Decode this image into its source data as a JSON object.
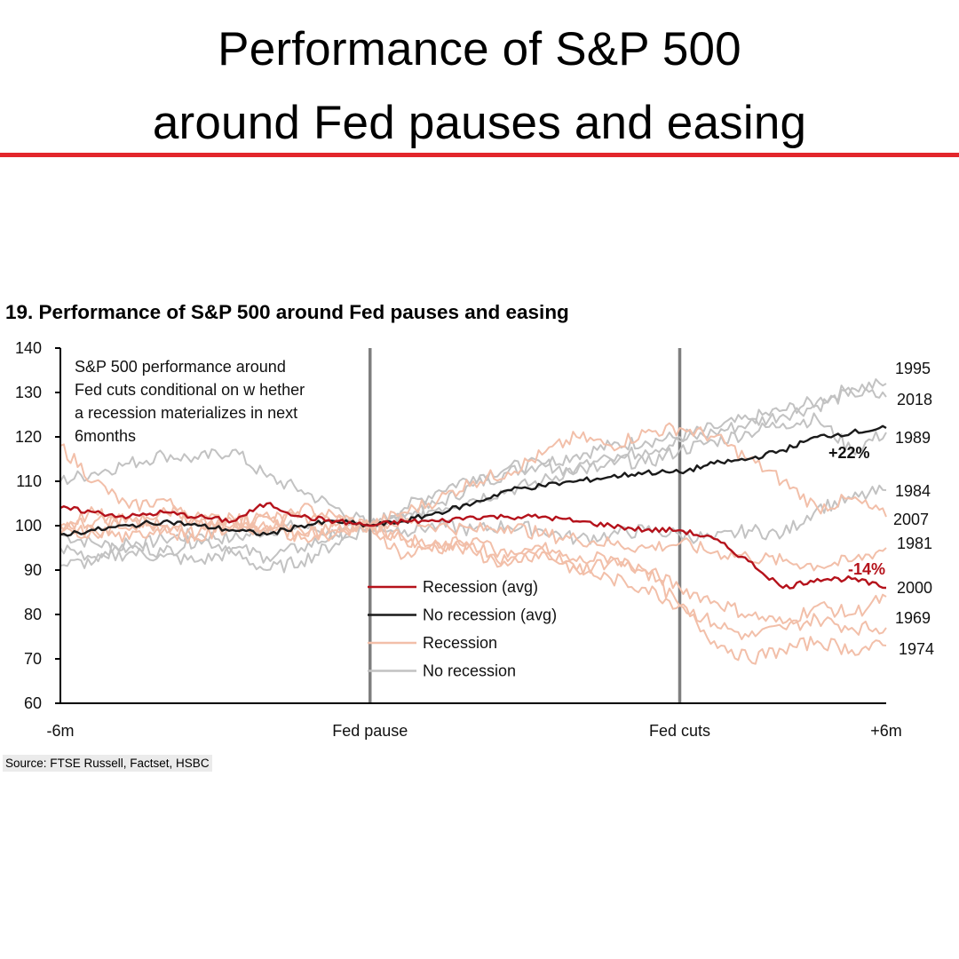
{
  "headline": {
    "line1": "Performance of S&P 500",
    "line2": "around Fed pauses and easing"
  },
  "source": "Source: FTSE Russell, Factset, HSBC",
  "colors": {
    "accent_rule": "#e3262b",
    "recession_avg": "#b5121b",
    "no_recession_avg": "#1a1a1a",
    "recession": "#f2bfa9",
    "no_recession": "#c2c2c2",
    "event_line": "#7f7f7f"
  },
  "chart_data": {
    "type": "line",
    "title": "19. Performance of S&P 500 around Fed pauses and easing",
    "annotation": "S&P 500 performance around Fed cuts conditional on w hether a recession materializes in next 6months",
    "annotation_lines": [
      "S&P 500 performance around",
      "Fed cuts conditional on w hether",
      "a recession materializes in next",
      "6months"
    ],
    "ylim": [
      60,
      140
    ],
    "yticks": [
      "140",
      "130",
      "120",
      "110",
      "100",
      "90",
      "80",
      "70",
      "60"
    ],
    "xlim": [
      0,
      12
    ],
    "xticks": [
      {
        "x": 0,
        "label": "-6m"
      },
      {
        "x": 4.5,
        "label": "Fed pause"
      },
      {
        "x": 9,
        "label": "Fed cuts"
      },
      {
        "x": 12,
        "label": "+6m"
      }
    ],
    "event_lines": [
      4.5,
      9
    ],
    "grid": false,
    "legend": {
      "placement": "bottom-center",
      "entries": [
        "Recession (avg)",
        "No recession (avg)",
        "Recession",
        "No recession"
      ]
    },
    "series": [
      {
        "name": "No recession",
        "group": "no_recession",
        "end_label": "1995",
        "points": [
          [
            0,
            98
          ],
          [
            0.5,
            96
          ],
          [
            1,
            95
          ],
          [
            1.5,
            97
          ],
          [
            2,
            98
          ],
          [
            2.5,
            97
          ],
          [
            3,
            99
          ],
          [
            3.5,
            100
          ],
          [
            4,
            98
          ],
          [
            4.5,
            100
          ],
          [
            5,
            102
          ],
          [
            5.5,
            105
          ],
          [
            6,
            109
          ],
          [
            6.5,
            112
          ],
          [
            7,
            114
          ],
          [
            7.5,
            116
          ],
          [
            8,
            118
          ],
          [
            8.5,
            119
          ],
          [
            9,
            120
          ],
          [
            9.5,
            122
          ],
          [
            10,
            124
          ],
          [
            10.5,
            126
          ],
          [
            11,
            128
          ],
          [
            11.5,
            131
          ],
          [
            12,
            132
          ]
        ]
      },
      {
        "name": "No recession",
        "group": "no_recession",
        "end_label": "2018",
        "points": [
          [
            0,
            110
          ],
          [
            0.5,
            112
          ],
          [
            1,
            114
          ],
          [
            1.5,
            116
          ],
          [
            2,
            115
          ],
          [
            2.5,
            117
          ],
          [
            3,
            111
          ],
          [
            3.5,
            108
          ],
          [
            4,
            104
          ],
          [
            4.5,
            100
          ],
          [
            5,
            104
          ],
          [
            5.5,
            108
          ],
          [
            6,
            111
          ],
          [
            6.5,
            113
          ],
          [
            7,
            114
          ],
          [
            7.5,
            112
          ],
          [
            8,
            115
          ],
          [
            8.5,
            117
          ],
          [
            9,
            119
          ],
          [
            9.5,
            121
          ],
          [
            10,
            123
          ],
          [
            10.5,
            125
          ],
          [
            11,
            127
          ],
          [
            11.5,
            130
          ],
          [
            12,
            129
          ]
        ]
      },
      {
        "name": "No recession",
        "group": "no_recession",
        "end_label": "1989",
        "points": [
          [
            0,
            95
          ],
          [
            0.5,
            93
          ],
          [
            1,
            96
          ],
          [
            1.5,
            94
          ],
          [
            2,
            97
          ],
          [
            2.5,
            95
          ],
          [
            3,
            93
          ],
          [
            3.5,
            95
          ],
          [
            4,
            98
          ],
          [
            4.5,
            100
          ],
          [
            5,
            102
          ],
          [
            5.5,
            104
          ],
          [
            6,
            106
          ],
          [
            6.5,
            108
          ],
          [
            7,
            110
          ],
          [
            7.5,
            113
          ],
          [
            8,
            115
          ],
          [
            8.5,
            114
          ],
          [
            9,
            117
          ],
          [
            9.5,
            119
          ],
          [
            10,
            121
          ],
          [
            10.5,
            123
          ],
          [
            11,
            124
          ],
          [
            11.5,
            117
          ],
          [
            12,
            121
          ]
        ]
      },
      {
        "name": "No recession",
        "group": "no_recession",
        "end_label": "1984",
        "points": [
          [
            0,
            91
          ],
          [
            0.5,
            92
          ],
          [
            1,
            94
          ],
          [
            1.5,
            93
          ],
          [
            2,
            92
          ],
          [
            2.5,
            94
          ],
          [
            3,
            90
          ],
          [
            3.5,
            92
          ],
          [
            4,
            96
          ],
          [
            4.5,
            100
          ],
          [
            5,
            99
          ],
          [
            5.5,
            100
          ],
          [
            6,
            99
          ],
          [
            6.5,
            100
          ],
          [
            7,
            99
          ],
          [
            7.5,
            97
          ],
          [
            8,
            98
          ],
          [
            8.5,
            99
          ],
          [
            9,
            98
          ],
          [
            9.5,
            97
          ],
          [
            10,
            99
          ],
          [
            10.5,
            98
          ],
          [
            11,
            104
          ],
          [
            11.5,
            106
          ],
          [
            12,
            108
          ]
        ]
      },
      {
        "name": "Recession",
        "group": "recession",
        "end_label": "2007",
        "points": [
          [
            0,
            118
          ],
          [
            0.5,
            110
          ],
          [
            1,
            104
          ],
          [
            1.5,
            106
          ],
          [
            2,
            100
          ],
          [
            2.5,
            102
          ],
          [
            3,
            98
          ],
          [
            3.5,
            104
          ],
          [
            4,
            102
          ],
          [
            4.5,
            100
          ],
          [
            5,
            103
          ],
          [
            5.5,
            106
          ],
          [
            6,
            110
          ],
          [
            6.5,
            112
          ],
          [
            7,
            116
          ],
          [
            7.5,
            120
          ],
          [
            8,
            118
          ],
          [
            8.5,
            121
          ],
          [
            9,
            122
          ],
          [
            9.5,
            120
          ],
          [
            10,
            115
          ],
          [
            10.5,
            110
          ],
          [
            11,
            104
          ],
          [
            11.5,
            106
          ],
          [
            12,
            102
          ]
        ]
      },
      {
        "name": "Recession",
        "group": "recession",
        "end_label": "1981",
        "points": [
          [
            0,
            100
          ],
          [
            0.5,
            101
          ],
          [
            1,
            102
          ],
          [
            1.5,
            100
          ],
          [
            2,
            103
          ],
          [
            2.5,
            101
          ],
          [
            3,
            100
          ],
          [
            3.5,
            102
          ],
          [
            4,
            101
          ],
          [
            4.5,
            100
          ],
          [
            5,
            101
          ],
          [
            5.5,
            100
          ],
          [
            6,
            99
          ],
          [
            6.5,
            100
          ],
          [
            7,
            98
          ],
          [
            7.5,
            97
          ],
          [
            8,
            96
          ],
          [
            8.5,
            95
          ],
          [
            9,
            96
          ],
          [
            9.5,
            94
          ],
          [
            10,
            93
          ],
          [
            10.5,
            92
          ],
          [
            11,
            91
          ],
          [
            11.5,
            92
          ],
          [
            12,
            95
          ]
        ]
      },
      {
        "name": "Recession",
        "group": "recession",
        "end_label": "2000",
        "points": [
          [
            0,
            100
          ],
          [
            0.5,
            103
          ],
          [
            1,
            99
          ],
          [
            1.5,
            104
          ],
          [
            2,
            101
          ],
          [
            2.5,
            99
          ],
          [
            3,
            102
          ],
          [
            3.5,
            97
          ],
          [
            4,
            99
          ],
          [
            4.5,
            100
          ],
          [
            5,
            97
          ],
          [
            5.5,
            95
          ],
          [
            6,
            97
          ],
          [
            6.5,
            93
          ],
          [
            7,
            95
          ],
          [
            7.5,
            90
          ],
          [
            8,
            92
          ],
          [
            8.5,
            90
          ],
          [
            9,
            86
          ],
          [
            9.5,
            83
          ],
          [
            10,
            80
          ],
          [
            10.5,
            78
          ],
          [
            11,
            82
          ],
          [
            11.5,
            80
          ],
          [
            12,
            84
          ]
        ]
      },
      {
        "name": "Recession",
        "group": "recession",
        "end_label": "1969",
        "points": [
          [
            0,
            98
          ],
          [
            0.5,
            99
          ],
          [
            1,
            97
          ],
          [
            1.5,
            100
          ],
          [
            2,
            98
          ],
          [
            2.5,
            101
          ],
          [
            3,
            99
          ],
          [
            3.5,
            98
          ],
          [
            4,
            100
          ],
          [
            4.5,
            100
          ],
          [
            5,
            97
          ],
          [
            5.5,
            94
          ],
          [
            6,
            96
          ],
          [
            6.5,
            92
          ],
          [
            7,
            94
          ],
          [
            7.5,
            90
          ],
          [
            8,
            88
          ],
          [
            8.5,
            86
          ],
          [
            9,
            82
          ],
          [
            9.5,
            78
          ],
          [
            10,
            75
          ],
          [
            10.5,
            77
          ],
          [
            11,
            79
          ],
          [
            11.5,
            77
          ],
          [
            12,
            77
          ]
        ]
      },
      {
        "name": "Recession",
        "group": "recession",
        "end_label": "1974",
        "points": [
          [
            0,
            100
          ],
          [
            0.5,
            98
          ],
          [
            1,
            102
          ],
          [
            1.5,
            99
          ],
          [
            2,
            97
          ],
          [
            2.5,
            100
          ],
          [
            3,
            103
          ],
          [
            3.5,
            99
          ],
          [
            4,
            98
          ],
          [
            4.5,
            100
          ],
          [
            5,
            93
          ],
          [
            5.5,
            96
          ],
          [
            6,
            94
          ],
          [
            6.5,
            91
          ],
          [
            7,
            95
          ],
          [
            7.5,
            92
          ],
          [
            8,
            93
          ],
          [
            8.5,
            90
          ],
          [
            9,
            82
          ],
          [
            9.5,
            74
          ],
          [
            10,
            70
          ],
          [
            10.5,
            72
          ],
          [
            11,
            74
          ],
          [
            11.5,
            72
          ],
          [
            12,
            73
          ]
        ]
      },
      {
        "name": "No recession (avg)",
        "group": "no_recession_avg",
        "end_label": "+22%",
        "points": [
          [
            0,
            98
          ],
          [
            0.5,
            99
          ],
          [
            1,
            100
          ],
          [
            1.5,
            101
          ],
          [
            2,
            100
          ],
          [
            2.5,
            99
          ],
          [
            3,
            98
          ],
          [
            3.5,
            100
          ],
          [
            4,
            101
          ],
          [
            4.5,
            100
          ],
          [
            5,
            101
          ],
          [
            5.5,
            103
          ],
          [
            6,
            105
          ],
          [
            6.5,
            108
          ],
          [
            7,
            109
          ],
          [
            7.5,
            110
          ],
          [
            8,
            111
          ],
          [
            8.5,
            112
          ],
          [
            9,
            112
          ],
          [
            9.5,
            114
          ],
          [
            10,
            115
          ],
          [
            10.5,
            117
          ],
          [
            11,
            120
          ],
          [
            11.5,
            121
          ],
          [
            12,
            122
          ]
        ]
      },
      {
        "name": "Recession (avg)",
        "group": "recession_avg",
        "end_label": "-14%",
        "points": [
          [
            0,
            104
          ],
          [
            0.5,
            103
          ],
          [
            1,
            102
          ],
          [
            1.5,
            103
          ],
          [
            2,
            102
          ],
          [
            2.5,
            101
          ],
          [
            3,
            105
          ],
          [
            3.5,
            102
          ],
          [
            4,
            101
          ],
          [
            4.5,
            100
          ],
          [
            5,
            101
          ],
          [
            5.5,
            101
          ],
          [
            6,
            102
          ],
          [
            6.5,
            102
          ],
          [
            7,
            102
          ],
          [
            7.5,
            101
          ],
          [
            8,
            100
          ],
          [
            8.5,
            99
          ],
          [
            9,
            99
          ],
          [
            9.5,
            97
          ],
          [
            10,
            92
          ],
          [
            10.5,
            86
          ],
          [
            11,
            88
          ],
          [
            11.5,
            88
          ],
          [
            12,
            86
          ]
        ]
      }
    ]
  }
}
